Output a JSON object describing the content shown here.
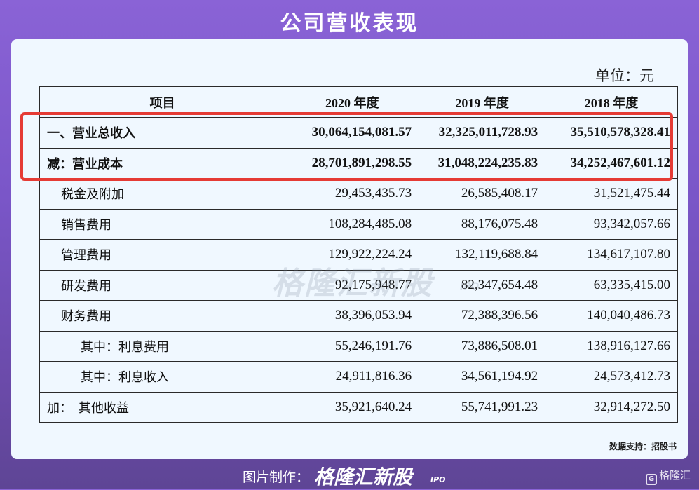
{
  "title": "公司营收表现",
  "unit_label": "单位：元",
  "table": {
    "headers": [
      "项目",
      "2020 年度",
      "2019 年度",
      "2018 年度"
    ],
    "rows": [
      {
        "label": "一、营业总收入",
        "values": [
          "30,064,154,081.57",
          "32,325,011,728.93",
          "35,510,578,328.41"
        ]
      },
      {
        "label": "减：营业成本",
        "values": [
          "28,701,891,298.55",
          "31,048,224,235.83",
          "34,252,467,601.12"
        ]
      },
      {
        "label": "税金及附加",
        "values": [
          "29,453,435.73",
          "26,585,408.17",
          "31,521,475.44"
        ]
      },
      {
        "label": "销售费用",
        "values": [
          "108,284,485.08",
          "88,176,075.48",
          "93,342,057.66"
        ]
      },
      {
        "label": "管理费用",
        "values": [
          "129,922,224.24",
          "132,119,688.84",
          "134,617,107.80"
        ]
      },
      {
        "label": "研发费用",
        "values": [
          "92,175,948.77",
          "82,347,654.48",
          "63,335,415.00"
        ]
      },
      {
        "label": "财务费用",
        "values": [
          "38,396,053.94",
          "72,388,396.56",
          "140,040,486.73"
        ]
      },
      {
        "label": "其中：利息费用",
        "values": [
          "55,246,191.76",
          "73,886,508.01",
          "138,916,127.66"
        ]
      },
      {
        "label": "其中：利息收入",
        "values": [
          "24,911,816.36",
          "34,561,194.92",
          "24,573,412.73"
        ]
      },
      {
        "label": "加：  其他收益",
        "values": [
          "35,921,640.24",
          "55,741,991.23",
          "32,914,272.50"
        ]
      }
    ]
  },
  "watermark": {
    "text": "格隆汇新股",
    "sub": "IPO"
  },
  "source_note": "数据支持：招股书",
  "footer": {
    "credit": "图片制作：",
    "brand": "格隆汇新股",
    "brand_sub": "IPO",
    "logo_text": "格隆汇"
  },
  "colors": {
    "highlight": "#e53b35",
    "card_bg": "#f0f8ff",
    "bg_top": "#8a63d6",
    "bg_bottom": "#5e4595"
  }
}
